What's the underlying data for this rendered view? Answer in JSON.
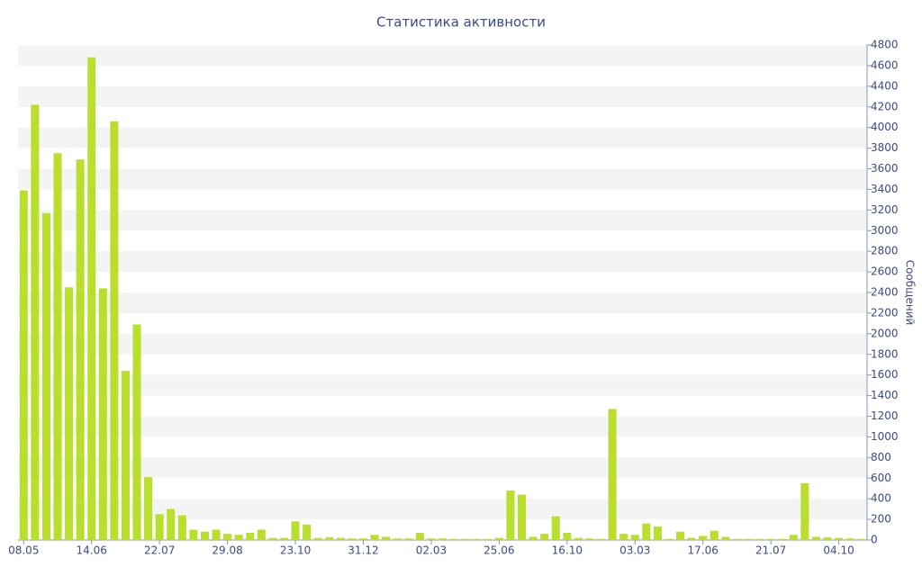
{
  "chart_data": {
    "type": "bar",
    "title": "Статистика активности",
    "y_label": "Сообщений",
    "categories": [
      "08.05",
      null,
      null,
      null,
      null,
      null,
      "14.06",
      null,
      null,
      null,
      null,
      null,
      "22.07",
      null,
      null,
      null,
      null,
      null,
      "29.08",
      null,
      null,
      null,
      null,
      null,
      "23.10",
      null,
      null,
      null,
      null,
      null,
      "31.12",
      null,
      null,
      null,
      null,
      null,
      "02.03",
      null,
      null,
      null,
      null,
      null,
      "25.06",
      null,
      null,
      null,
      null,
      null,
      "16.10",
      null,
      null,
      null,
      null,
      null,
      "03.03",
      null,
      null,
      null,
      null,
      null,
      "17.06",
      null,
      null,
      null,
      null,
      null,
      "21.07",
      null,
      null,
      null,
      null,
      null,
      "04.10",
      null,
      null
    ],
    "values": [
      3390,
      4220,
      3170,
      3750,
      2450,
      3690,
      4680,
      2440,
      4060,
      1640,
      2090,
      610,
      250,
      300,
      240,
      100,
      80,
      100,
      60,
      50,
      70,
      100,
      20,
      20,
      180,
      150,
      20,
      25,
      20,
      15,
      15,
      50,
      30,
      15,
      15,
      70,
      15,
      15,
      10,
      10,
      10,
      10,
      20,
      480,
      440,
      30,
      60,
      230,
      70,
      20,
      15,
      10,
      1270,
      60,
      50,
      160,
      130,
      10,
      80,
      20,
      40,
      90,
      30,
      10,
      10,
      10,
      10,
      10,
      50,
      550,
      30,
      25,
      20,
      15,
      10
    ],
    "color": "#bade2e",
    "ylim": [
      0,
      4800
    ],
    "yticks": [
      0,
      200,
      400,
      600,
      800,
      1000,
      1200,
      1400,
      1600,
      1800,
      2000,
      2200,
      2400,
      2600,
      2800,
      3000,
      3200,
      3400,
      3600,
      3800,
      4000,
      4200,
      4400,
      4600,
      4800
    ],
    "y_axis_side": "right",
    "grid": true
  }
}
